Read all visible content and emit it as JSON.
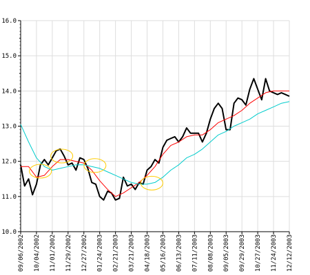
{
  "chart_data": {
    "type": "line",
    "title": "",
    "xlabel": "",
    "ylabel": "",
    "ylim": [
      10.0,
      16.0
    ],
    "y_ticks": [
      "10.0",
      "11.0",
      "12.0",
      "13.0",
      "14.0",
      "15.0",
      "16.0"
    ],
    "x_tick_labels": [
      "09/06/2002",
      "10/04/2002",
      "11/01/2002",
      "11/29/2002",
      "12/27/2002",
      "01/24/2003",
      "02/21/2003",
      "03/21/2003",
      "04/18/2003",
      "05/16/2003",
      "06/13/2003",
      "07/11/2003",
      "08/08/2003",
      "09/05/2003",
      "09/29/2003",
      "10/27/2003",
      "11/24/2003",
      "12/12/2003"
    ],
    "grid": true,
    "legend": "none",
    "series": [
      {
        "color": "#000000",
        "x": [
          0,
          0.25,
          0.5,
          0.75,
          1.0,
          1.25,
          1.5,
          1.75,
          2.0,
          2.25,
          2.5,
          2.75,
          3.0,
          3.25,
          3.5,
          3.75,
          4.0,
          4.25,
          4.5,
          4.75,
          5.0,
          5.25,
          5.5,
          5.75,
          6.0,
          6.25,
          6.5,
          6.75,
          7.0,
          7.25,
          7.5,
          7.75,
          8.0,
          8.25,
          8.5,
          8.75,
          9.0,
          9.25,
          9.5,
          9.75,
          10.0,
          10.25,
          10.5,
          10.75,
          11.0,
          11.25,
          11.5,
          11.75,
          12.0,
          12.25,
          12.5,
          12.75,
          13.0,
          13.25,
          13.5,
          13.75,
          14.0,
          14.25,
          14.5,
          14.75,
          15.0,
          15.25,
          15.5,
          15.75,
          16.0,
          16.25,
          16.5,
          16.75,
          17.0
        ],
        "values": [
          11.9,
          11.3,
          11.5,
          11.05,
          11.35,
          11.9,
          12.05,
          11.9,
          12.1,
          12.3,
          12.35,
          12.15,
          11.9,
          11.95,
          11.75,
          12.1,
          12.05,
          11.8,
          11.4,
          11.35,
          11.0,
          10.9,
          11.15,
          11.1,
          10.9,
          10.95,
          11.55,
          11.3,
          11.35,
          11.2,
          11.4,
          11.35,
          11.75,
          11.85,
          12.05,
          11.95,
          12.4,
          12.6,
          12.65,
          12.7,
          12.55,
          12.7,
          12.95,
          12.8,
          12.8,
          12.8,
          12.55,
          12.8,
          13.2,
          13.5,
          13.65,
          13.5,
          12.9,
          12.9,
          13.65,
          13.8,
          13.75,
          13.6,
          14.05,
          14.35,
          14.05,
          13.75,
          14.35,
          14.0,
          13.95,
          13.9,
          13.95,
          13.9,
          13.85
        ],
        "points": [
          11.9,
          11.3,
          11.5,
          11.05,
          11.35,
          11.9,
          12.05,
          11.9,
          12.1,
          12.3,
          12.35,
          12.15,
          11.9,
          11.95,
          11.75,
          12.1,
          12.05,
          11.8,
          11.4,
          11.35,
          11.0,
          10.9,
          11.15,
          11.1,
          10.9,
          10.95,
          11.55,
          11.3,
          11.35,
          11.2,
          11.4,
          11.35,
          11.75,
          11.85,
          12.05,
          11.95,
          12.4,
          12.6,
          12.65,
          12.7,
          12.55,
          12.7,
          12.95,
          12.8,
          12.8,
          12.8,
          12.55,
          12.8,
          13.2,
          13.5,
          13.65,
          13.5,
          12.9,
          12.9,
          13.65,
          13.8,
          13.75,
          13.6,
          14.05,
          14.35,
          14.05,
          13.75,
          14.35,
          14.0,
          13.95,
          13.9,
          13.95,
          13.9,
          13.85
        ],
        "values_note_free": true
      },
      {
        "color": "#ff0000",
        "x": [
          0,
          0.5,
          1.0,
          1.5,
          2.0,
          2.5,
          3.0,
          3.5,
          4.0,
          4.5,
          5.0,
          5.5,
          6.0,
          6.5,
          7.0,
          7.5,
          8.0,
          8.5,
          9.0,
          9.5,
          10.0,
          10.5,
          11.0,
          11.5,
          12.0,
          12.5,
          13.0,
          13.5,
          14.0,
          14.5,
          15.0,
          15.5,
          16.0,
          16.5,
          17.0
        ],
        "values": [
          11.85,
          11.85,
          11.55,
          11.6,
          11.85,
          12.05,
          12.05,
          12.0,
          11.95,
          11.75,
          11.45,
          11.2,
          11.0,
          11.1,
          11.25,
          11.4,
          11.6,
          11.85,
          12.2,
          12.45,
          12.55,
          12.7,
          12.75,
          12.75,
          12.9,
          13.1,
          13.2,
          13.3,
          13.45,
          13.65,
          13.8,
          13.95,
          14.0,
          14.0,
          14.0
        ]
      },
      {
        "color": "#00cccc",
        "x": [
          0,
          0.5,
          1.0,
          1.5,
          2.0,
          2.5,
          3.0,
          3.5,
          4.0,
          4.5,
          5.0,
          5.5,
          6.0,
          6.5,
          7.0,
          7.5,
          8.0,
          8.5,
          9.0,
          9.5,
          10.0,
          10.5,
          11.0,
          11.5,
          12.0,
          12.5,
          13.0,
          13.5,
          14.0,
          14.5,
          15.0,
          15.5,
          16.0,
          16.5,
          17.0
        ],
        "values": [
          13.05,
          12.55,
          12.1,
          11.85,
          11.75,
          11.8,
          11.85,
          11.9,
          11.9,
          11.85,
          11.8,
          11.7,
          11.6,
          11.5,
          11.4,
          11.35,
          11.35,
          11.4,
          11.55,
          11.75,
          11.9,
          12.1,
          12.2,
          12.35,
          12.55,
          12.75,
          12.85,
          13.0,
          13.1,
          13.2,
          13.35,
          13.45,
          13.55,
          13.65,
          13.7
        ]
      }
    ],
    "highlights": [
      {
        "color": "#ffcc00",
        "x": 1.25,
        "y": 11.72
      },
      {
        "color": "#ffcc00",
        "x": 2.6,
        "y": 12.15
      },
      {
        "color": "#ffcc00",
        "x": 4.7,
        "y": 11.88
      },
      {
        "color": "#ffcc00",
        "x": 8.3,
        "y": 11.38
      }
    ]
  }
}
